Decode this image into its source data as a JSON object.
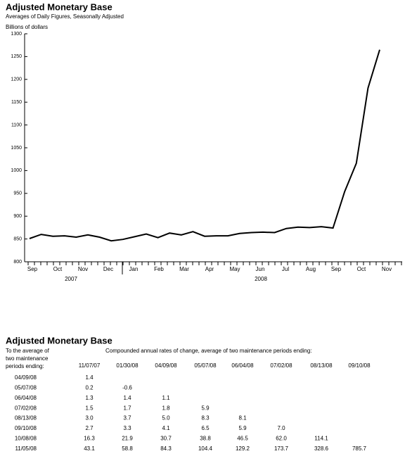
{
  "chart_data": {
    "type": "line",
    "title": "Adjusted Monetary Base",
    "subtitle": "Averages of Daily Figures, Seasonally Adjusted",
    "y_label": "Billions of dollars",
    "months": [
      "Sep",
      "Oct",
      "Nov",
      "Dec",
      "Jan",
      "Feb",
      "Mar",
      "Apr",
      "May",
      "Jun",
      "Jul",
      "Aug",
      "Sep",
      "Oct",
      "Nov"
    ],
    "years": [
      "2007",
      "2008"
    ],
    "values": [
      851,
      860,
      856,
      857,
      854,
      859,
      854,
      846,
      849,
      855,
      861,
      853,
      863,
      859,
      866,
      856,
      857,
      857,
      862,
      864,
      865,
      864,
      873,
      876,
      875,
      877,
      874,
      954,
      1016,
      1181,
      1265
    ],
    "color": "#000000",
    "ylim": [
      800,
      1300
    ],
    "yticks": [
      800,
      850,
      900,
      950,
      1000,
      1050,
      1100,
      1150,
      1200,
      1250,
      1300
    ]
  },
  "table": {
    "title": "Adjusted Monetary Base",
    "row_header": [
      "To the average of",
      "two maintenance",
      "periods ending:"
    ],
    "column_caption": "Compounded annual rates of change, average of two maintenance periods ending:",
    "columns": [
      "11/07/07",
      "01/30/08",
      "04/09/08",
      "05/07/08",
      "06/04/08",
      "07/02/08",
      "08/13/08",
      "09/10/08"
    ],
    "rows": [
      {
        "label": "04/09/08",
        "cells": [
          "1.4"
        ]
      },
      {
        "label": "05/07/08",
        "cells": [
          "0.2",
          "-0.6"
        ]
      },
      {
        "label": "06/04/08",
        "cells": [
          "1.3",
          "1.4",
          "1.1"
        ]
      },
      {
        "label": "07/02/08",
        "cells": [
          "1.5",
          "1.7",
          "1.8",
          "5.9"
        ]
      },
      {
        "label": "08/13/08",
        "cells": [
          "3.0",
          "3.7",
          "5.0",
          "8.3",
          "8.1"
        ]
      },
      {
        "label": "09/10/08",
        "cells": [
          "2.7",
          "3.3",
          "4.1",
          "6.5",
          "5.9",
          "7.0"
        ]
      },
      {
        "label": "10/08/08",
        "cells": [
          "16.3",
          "21.9",
          "30.7",
          "38.8",
          "46.5",
          "62.0",
          "114.1"
        ]
      },
      {
        "label": "11/05/08",
        "cells": [
          "43.1",
          "58.8",
          "84.3",
          "104.4",
          "129.2",
          "173.7",
          "328.6",
          "785.7"
        ]
      }
    ]
  }
}
